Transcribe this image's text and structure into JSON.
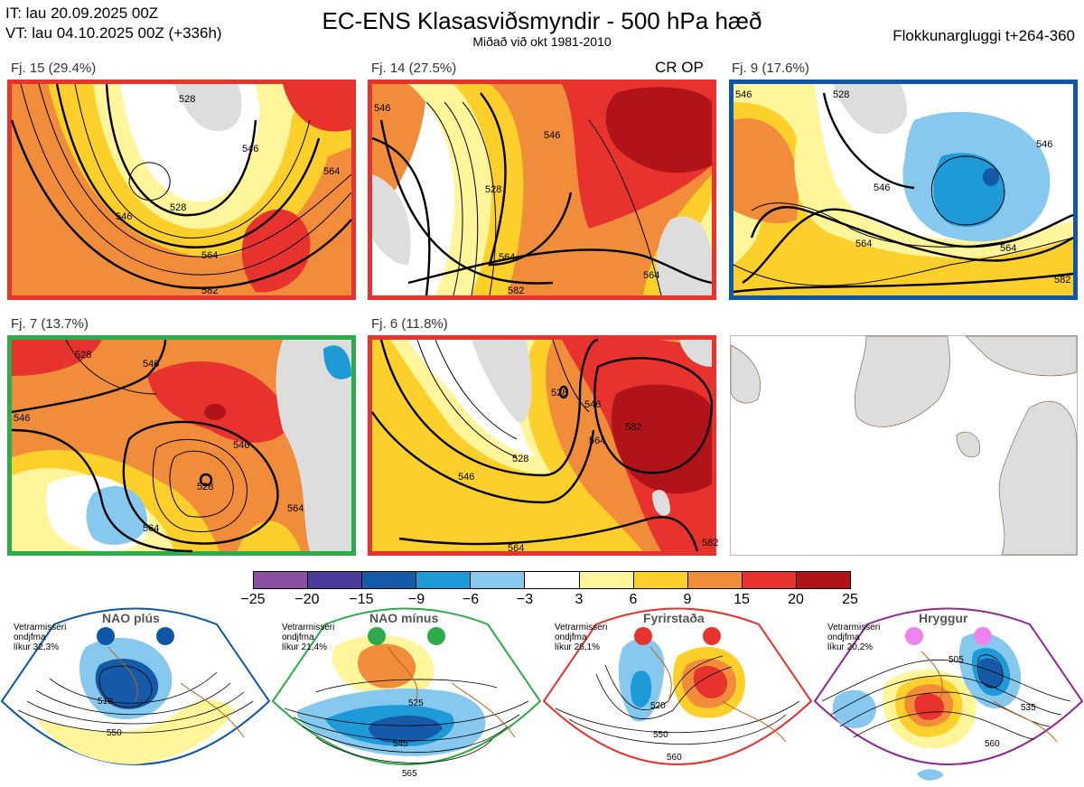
{
  "header": {
    "it_line": "IT: lau 20.09.2025 00Z",
    "vt_line": "VT: lau 04.10.2025 00Z  (+336h)",
    "title": "EC-ENS Klasasviðsmyndir - 500 hPa hæð",
    "subtitle": "Miðað við okt 1981-2010",
    "window": "Flokkunargluggi t+264-360"
  },
  "panels": [
    {
      "label": "Fj. 15 (29.4%)",
      "border": "#e8322e",
      "contours": [
        "528",
        "546",
        "564",
        "582",
        "528",
        "546",
        "564"
      ]
    },
    {
      "label": "Fj. 14 (27.5%)",
      "border": "#e8322e",
      "contours": [
        "546",
        "528",
        "546",
        "564",
        "564",
        "582"
      ],
      "extra": "CR OP"
    },
    {
      "label": "Fj. 9 (17.6%)",
      "border": "#0f57a6",
      "contours": [
        "546",
        "528",
        "546",
        "546",
        "564",
        "564",
        "582"
      ]
    },
    {
      "label": "Fj. 7 (13.7%)",
      "border": "#2eab4a",
      "contours": [
        "528",
        "546",
        "546",
        "546",
        "528",
        "564",
        "564"
      ]
    },
    {
      "label": "Fj. 6 (11.8%)",
      "border": "#e8322e",
      "contours": [
        "528",
        "546",
        "528",
        "546",
        "564",
        "582",
        "564",
        "582"
      ]
    },
    {
      "label": "",
      "border": "#bbbbbb",
      "contours": []
    }
  ],
  "colorbar": {
    "colors": [
      "#8a4fa0",
      "#4a3a9a",
      "#145aa8",
      "#1e9ad8",
      "#86c8ee",
      "#ffffff",
      "#fff59a",
      "#fdcf2a",
      "#f08c3a",
      "#e8322e",
      "#b01418"
    ],
    "ticks": [
      "−25",
      "−20",
      "−15",
      "−9",
      "−6",
      "−3",
      "3",
      "6",
      "9",
      "15",
      "20",
      "25"
    ]
  },
  "regimes": [
    {
      "title": "NAO plús",
      "note_1": "Vetrarmisseri",
      "note_2": "ondjfma",
      "note_3": "líkur 32,3%",
      "color": "#0f57a6",
      "contours": [
        "510",
        "550"
      ]
    },
    {
      "title": "NAO mínus",
      "note_1": "Vetrarmisseri",
      "note_2": "ondjfma",
      "note_3": "líkur 21,4%",
      "color": "#2eab4a",
      "contours": [
        "525",
        "545",
        "565"
      ]
    },
    {
      "title": "Fyrirstaða",
      "note_1": "Vetrarmisseri",
      "note_2": "ondjfma",
      "note_3": "líkur 26,1%",
      "color": "#e8322e",
      "contours": [
        "520",
        "550",
        "560"
      ]
    },
    {
      "title": "Hryggur",
      "note_1": "Vetrarmisseri",
      "note_2": "ondjfma",
      "note_3": "líkur 20,2%",
      "color": "#8e2a8e",
      "dot": "#ee82ee",
      "contours": [
        "505",
        "535",
        "560"
      ]
    }
  ]
}
